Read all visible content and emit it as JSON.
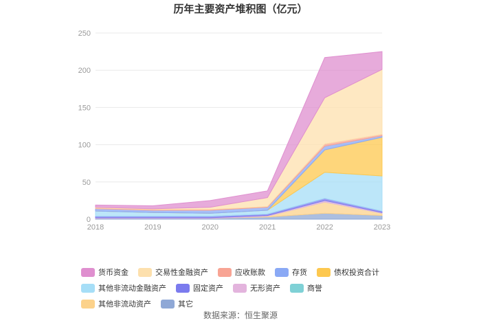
{
  "chart_data": {
    "type": "area",
    "stacked": true,
    "title": "历年主要资产堆积图（亿元）",
    "categories": [
      "2018",
      "2019",
      "2020",
      "2021",
      "2022",
      "2023"
    ],
    "ylim": [
      0,
      250
    ],
    "yticks": [
      0,
      50,
      100,
      150,
      200,
      250
    ],
    "grid": true,
    "legend_position": "bottom",
    "series": [
      {
        "name": "其它",
        "color": "#8fa8d6",
        "values": [
          1,
          1,
          1,
          3,
          8,
          5
        ]
      },
      {
        "name": "其他非流动资产",
        "color": "#fcd28b",
        "values": [
          0,
          0,
          0,
          1,
          15,
          3
        ]
      },
      {
        "name": "商誉",
        "color": "#7fd1d6",
        "values": [
          0,
          0,
          0,
          0,
          0,
          0
        ]
      },
      {
        "name": "无形资产",
        "color": "#e3b4dd",
        "values": [
          1,
          1,
          1,
          1,
          2,
          1
        ]
      },
      {
        "name": "固定资产",
        "color": "#7b7bee",
        "values": [
          2,
          2,
          2,
          2,
          3,
          2
        ]
      },
      {
        "name": "其他非流动金融资产",
        "color": "#a6def7",
        "values": [
          7,
          5,
          4,
          5,
          35,
          47
        ]
      },
      {
        "name": "债权投资合计",
        "color": "#fdc84f",
        "values": [
          0,
          0,
          0,
          0,
          30,
          52
        ]
      },
      {
        "name": "存货",
        "color": "#8aa9f5",
        "values": [
          3,
          3,
          4,
          4,
          5,
          2
        ]
      },
      {
        "name": "应收账款",
        "color": "#f8a494",
        "values": [
          1,
          1,
          1,
          1,
          3,
          2
        ]
      },
      {
        "name": "交易性金融资产",
        "color": "#fde0ad",
        "values": [
          1,
          1,
          3,
          12,
          62,
          87
        ]
      },
      {
        "name": "货币资金",
        "color": "#df8fcf",
        "values": [
          3,
          4,
          9,
          9,
          54,
          24
        ]
      }
    ]
  },
  "legend": {
    "row1": [
      {
        "label": "货币资金",
        "color": "#df8fcf"
      },
      {
        "label": "交易性金融资产",
        "color": "#fde0ad"
      },
      {
        "label": "应收账款",
        "color": "#f8a494"
      },
      {
        "label": "存货",
        "color": "#8aa9f5"
      },
      {
        "label": "债权投资合计",
        "color": "#fdc84f"
      }
    ],
    "row2": [
      {
        "label": "其他非流动金融资产",
        "color": "#a6def7"
      },
      {
        "label": "固定资产",
        "color": "#7b7bee"
      },
      {
        "label": "无形资产",
        "color": "#e3b4dd"
      },
      {
        "label": "商誉",
        "color": "#7fd1d6"
      },
      {
        "label": "其他非流动资产",
        "color": "#fcd28b"
      },
      {
        "label": "其它",
        "color": "#8fa8d6"
      }
    ]
  },
  "source": "数据来源：恒生聚源"
}
